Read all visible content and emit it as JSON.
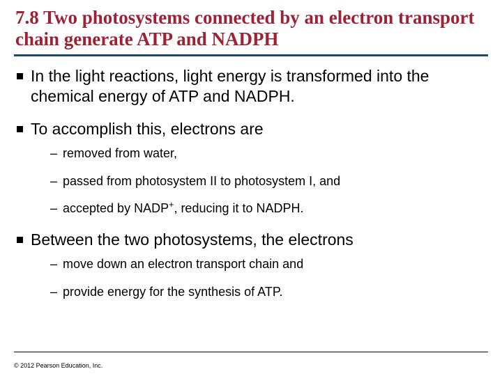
{
  "colors": {
    "title_color": "#9d2235",
    "rule_color": "#19496f",
    "background": "#ffffff",
    "text_color": "#000000"
  },
  "title": "7.8 Two photosystems connected by an electron transport chain generate ATP and NADPH",
  "bullets": {
    "b1": "In the light reactions, light energy is transformed into the chemical energy of ATP and NADPH.",
    "b2": "To accomplish this, electrons are",
    "b2_sub": {
      "s1": "removed from water,",
      "s2": "passed from photosystem II to photosystem I, and",
      "s3_pre": "accepted by NADP",
      "s3_sup": "+",
      "s3_post": ", reducing it to NADPH."
    },
    "b3": "Between the two photosystems, the electrons",
    "b3_sub": {
      "s1": "move down an electron transport chain and",
      "s2": "provide energy for the synthesis of ATP."
    }
  },
  "copyright": "© 2012 Pearson Education, Inc."
}
